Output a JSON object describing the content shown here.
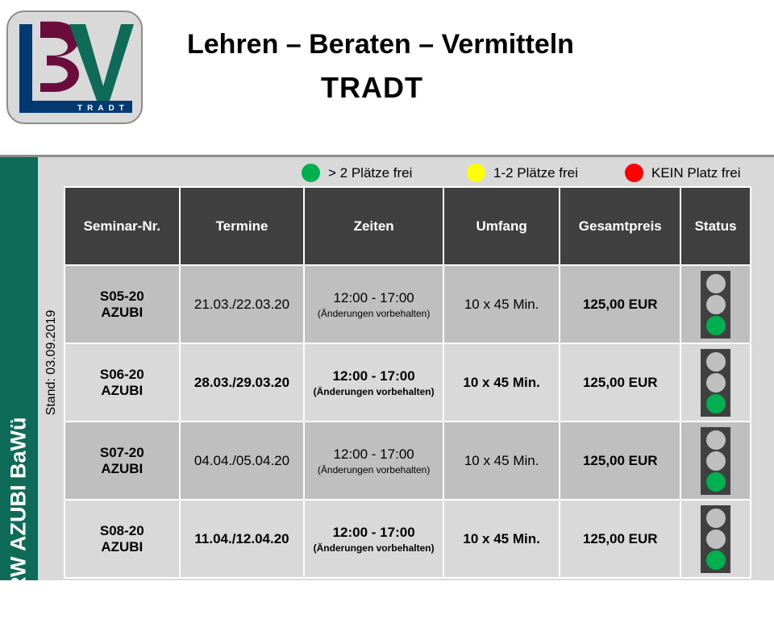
{
  "logo": {
    "text": "BV TRADT",
    "sub": "TRADT",
    "colors": {
      "l": "#003a70",
      "b": "#6b0d3c",
      "v": "#0e6b58"
    }
  },
  "header": {
    "title": "Lehren – Beraten – Vermitteln",
    "subtitle": "TRADT"
  },
  "sidebar": {
    "label": "VBRW  AZUBI  BaWü"
  },
  "stand": "Stand: 03.09.2019",
  "legend": [
    {
      "label": "> 2 Plätze frei",
      "color": "#00b050"
    },
    {
      "label": "1-2 Plätze frei",
      "color": "#ffff00"
    },
    {
      "label": "KEIN Platz frei",
      "color": "#ff0000"
    }
  ],
  "table": {
    "headers": [
      "Seminar-Nr.",
      "Termine",
      "Zeiten",
      "Umfang",
      "Gesamtpreis",
      "Status"
    ],
    "rows": [
      {
        "nr": "S05-20",
        "type": "AZUBI",
        "termine": "21.03./22.03.20",
        "zeit": "12:00 - 17:00",
        "hinweis": "(Änderungen vorbehalten)",
        "umfang": "10 x 45 Min.",
        "preis": "125,00 EUR",
        "status": "green"
      },
      {
        "nr": "S06-20",
        "type": "AZUBI",
        "termine": "28.03./29.03.20",
        "zeit": "12:00 - 17:00",
        "hinweis": "(Änderungen vorbehalten)",
        "umfang": "10 x 45 Min.",
        "preis": "125,00 EUR",
        "status": "green"
      },
      {
        "nr": "S07-20",
        "type": "AZUBI",
        "termine": "04.04./05.04.20",
        "zeit": "12:00 - 17:00",
        "hinweis": "(Änderungen vorbehalten)",
        "umfang": "10 x 45 Min.",
        "preis": "125,00 EUR",
        "status": "green"
      },
      {
        "nr": "S08-20",
        "type": "AZUBI",
        "termine": "11.04./12.04.20",
        "zeit": "12:00 - 17:00",
        "hinweis": "(Änderungen vorbehalten)",
        "umfang": "10 x 45 Min.",
        "preis": "125,00 EUR",
        "status": "green"
      }
    ]
  }
}
